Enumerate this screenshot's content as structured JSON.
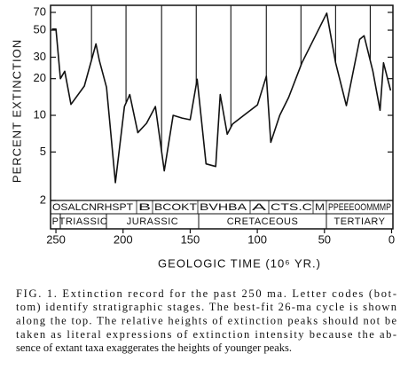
{
  "chart_data": {
    "type": "line",
    "yscale": "log",
    "y_label": "PERCENT EXTINCTION",
    "x_label": "GEOLOGIC TIME (10⁶ YR.)",
    "xlim": [
      254,
      -1
    ],
    "xticks": [
      250,
      200,
      150,
      100,
      50,
      0
    ],
    "ylim": [
      2,
      80
    ],
    "yticks": [
      2,
      5,
      10,
      20,
      30,
      50,
      70
    ],
    "x": [
      253,
      250,
      246.7,
      243.4,
      238.8,
      228.8,
      220.2,
      217.6,
      212.3,
      205.7,
      199,
      195,
      189,
      182.5,
      175.9,
      169.3,
      162.7,
      156,
      150,
      144.8,
      138.2,
      131,
      127.6,
      122.4,
      118.4,
      99.9,
      93.3,
      90,
      83.3,
      76.7,
      66.8,
      48.3,
      41.7,
      33.7,
      23.8,
      20.5,
      13.9,
      8.6,
      6,
      0.7
    ],
    "values": [
      51,
      51,
      20,
      23,
      12.3,
      17.4,
      38.6,
      28,
      17,
      2.8,
      11.8,
      14.8,
      7.2,
      8.6,
      11.8,
      3.5,
      10,
      9.5,
      9.2,
      19.8,
      4,
      3.8,
      14.8,
      7,
      8.5,
      12.2,
      21,
      6,
      10,
      14,
      27,
      69,
      27,
      12,
      42,
      45,
      23,
      11,
      27,
      16
    ],
    "color": "#111111",
    "cycle_x": [
      223.5,
      197.8,
      171.3,
      145.5,
      119.7,
      93.3,
      67.5,
      41.7,
      15.9
    ],
    "stage_codes": [
      "OSALCNRHSPT",
      "B",
      "BCOKT",
      "BVHBA",
      "A",
      "CTS.C",
      "M",
      "PPEEEOOMMMP"
    ],
    "periods": [
      "P",
      "TRIASSIC",
      "JURASSIC",
      "CRETACEOUS",
      "TERTIARY"
    ]
  },
  "caption": [
    "FIG. 1.   Extinction record for the past 250 ma. Letter codes (bot-",
    "tom) identify stratigraphic stages. The best-fit 26-ma cycle is shown",
    "along the top. The relative heights of extinction peaks should not be",
    "taken as literal expressions of extinction intensity because the ab-",
    "sence of extant taxa exaggerates the heights of younger peaks."
  ]
}
